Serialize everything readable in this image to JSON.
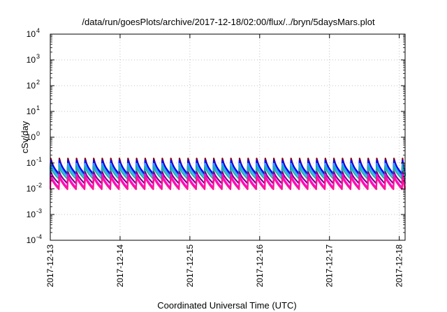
{
  "chart_data": {
    "type": "line",
    "title": "/data/run/goesPlots/archive/2017-12-18/02:00/flux/../bryn/5daysMars.plot",
    "xlabel": "Coordinated Universal Time (UTC)",
    "ylabel": "cSv/day",
    "yscale": "log",
    "ylim": [
      0.0001,
      10000
    ],
    "y_ticks": [
      {
        "base": "10",
        "exp": "-4",
        "value": 0.0001
      },
      {
        "base": "10",
        "exp": "-3",
        "value": 0.001
      },
      {
        "base": "10",
        "exp": "-2",
        "value": 0.01
      },
      {
        "base": "10",
        "exp": "-1",
        "value": 0.1
      },
      {
        "base": "10",
        "exp": "0",
        "value": 1
      },
      {
        "base": "10",
        "exp": "1",
        "value": 10
      },
      {
        "base": "10",
        "exp": "2",
        "value": 100
      },
      {
        "base": "10",
        "exp": "3",
        "value": 1000
      },
      {
        "base": "10",
        "exp": "4",
        "value": 10000
      }
    ],
    "xlim": [
      "2017-12-13T00:00",
      "2017-12-18T02:00"
    ],
    "x_ticks": [
      "2017-12-13",
      "2017-12-14",
      "2017-12-15",
      "2017-12-16",
      "2017-12-17",
      "2017-12-18"
    ],
    "grid": true,
    "pattern": {
      "period_hours": 2.95,
      "series": [
        {
          "color": "#8b0000",
          "peak": 0.15,
          "trough": 0.033
        },
        {
          "color": "#0000ff",
          "peak": 0.125,
          "trough": 0.038
        },
        {
          "color": "#2aa1ff",
          "peak": 0.095,
          "trough": 0.03
        },
        {
          "color": "#20b2aa",
          "peak": 0.07,
          "trough": 0.024
        },
        {
          "color": "#800080",
          "peak": 0.045,
          "trough": 0.016
        },
        {
          "color": "#ff00ff",
          "peak": 0.035,
          "trough": 0.011
        },
        {
          "color": "#ff1493",
          "peak": 0.03,
          "trough": 0.0095
        }
      ]
    }
  }
}
